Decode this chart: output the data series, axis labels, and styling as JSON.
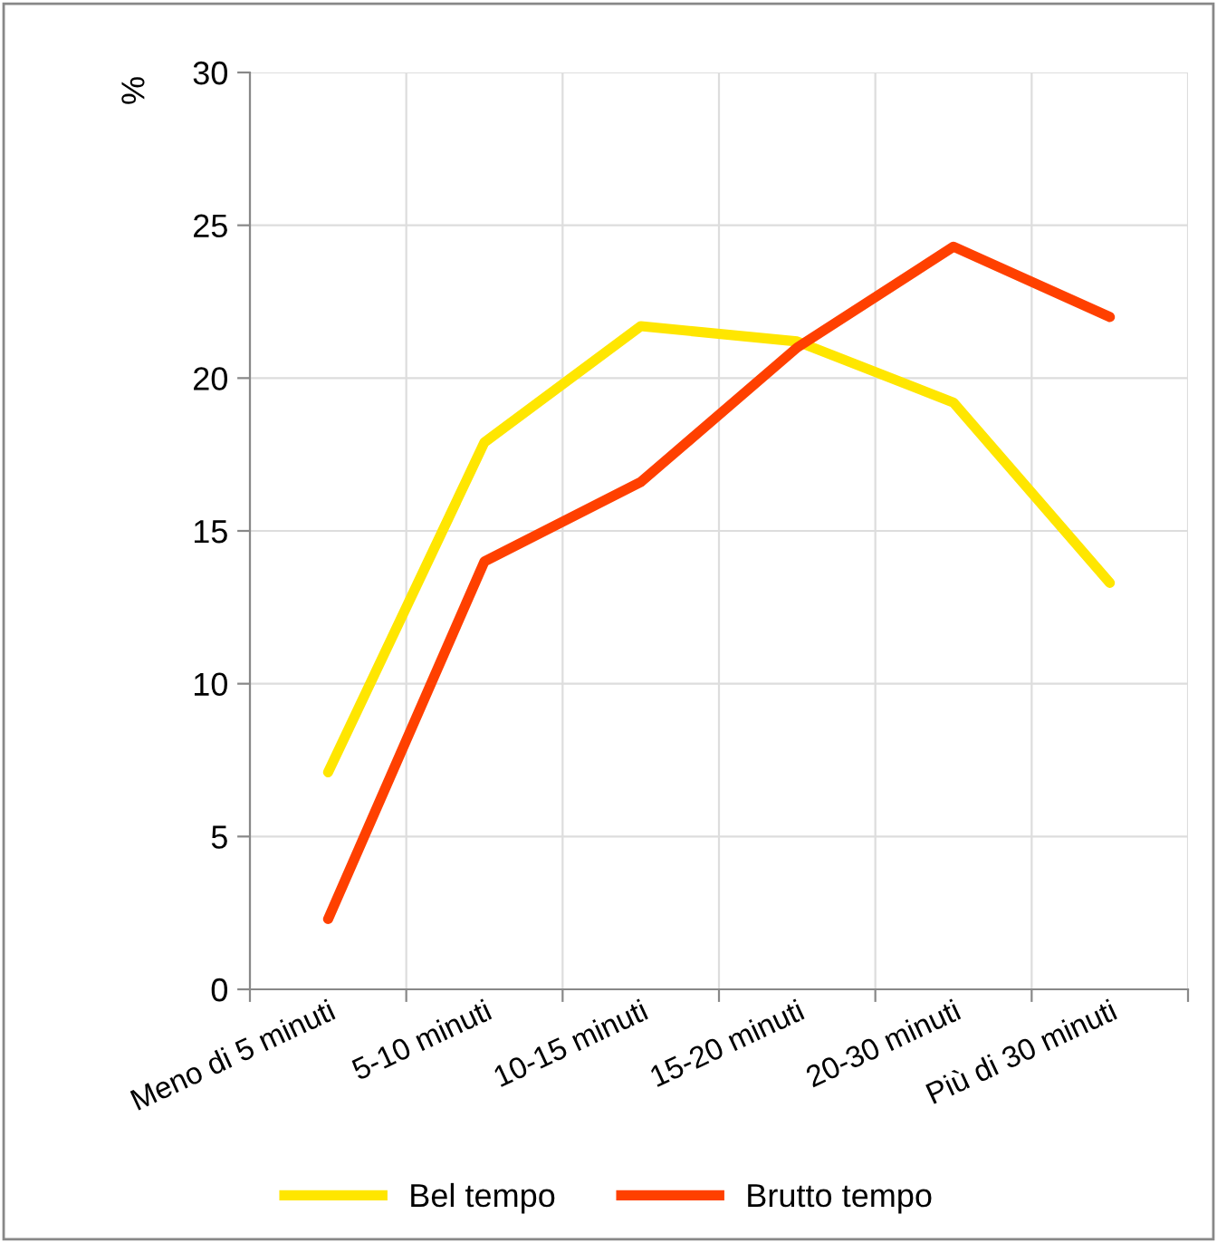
{
  "chart_data": {
    "type": "line",
    "ylabel": "%",
    "categories": [
      "Meno di 5 minuti",
      "5-10 minuti",
      "10-15 minuti",
      "15-20 minuti",
      "20-30 minuti",
      "Più di 30 minuti"
    ],
    "series": [
      {
        "name": "Bel tempo",
        "color": "#ffe600",
        "values": [
          7.1,
          17.9,
          21.7,
          21.2,
          19.2,
          13.3
        ]
      },
      {
        "name": "Brutto tempo",
        "color": "#ff4000",
        "values": [
          2.3,
          14.0,
          16.6,
          21.0,
          24.3,
          22.0
        ]
      }
    ],
    "ylim": [
      0,
      30
    ],
    "yticks": [
      0,
      5,
      10,
      15,
      20,
      25,
      30
    ],
    "grid": true,
    "legend": "bottom",
    "marker": "none",
    "line_style": "solid"
  }
}
